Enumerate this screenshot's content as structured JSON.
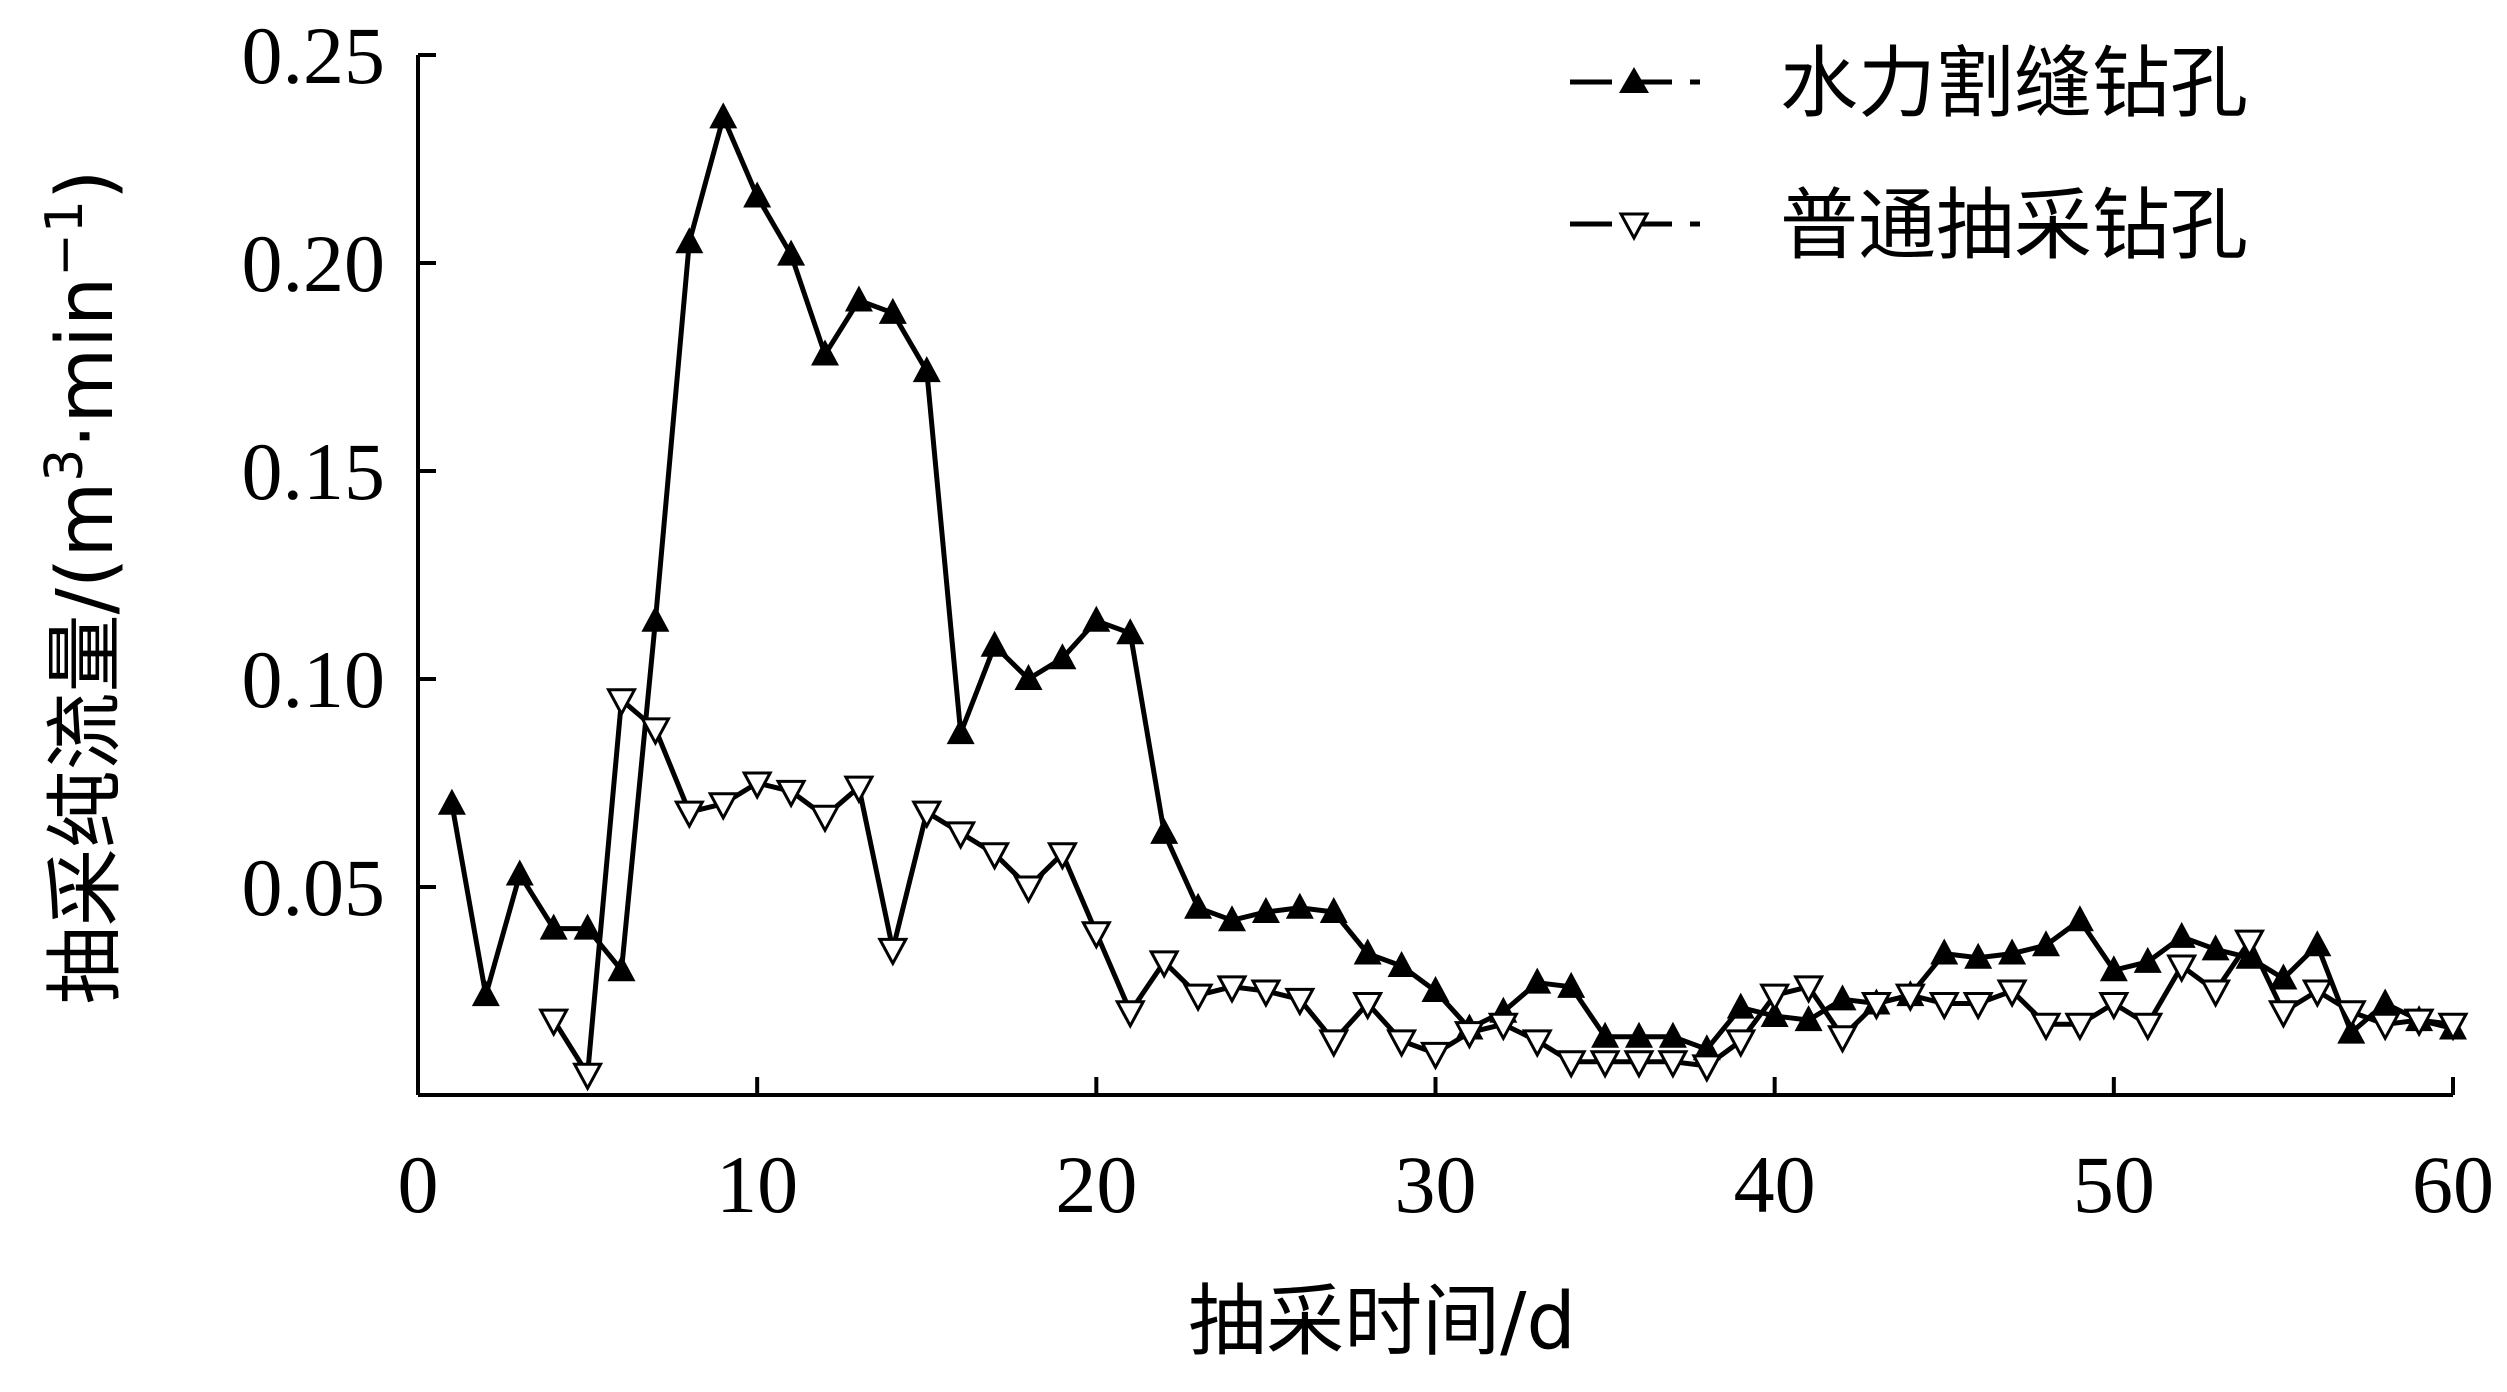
{
  "chart_data": {
    "type": "line",
    "xlabel": "抽采时间/d",
    "ylabel_prefix": "抽采纯流量/(m",
    "ylabel_sup1": "3",
    "ylabel_mid": "·min",
    "ylabel_sup2": "−1",
    "ylabel_suffix": ")",
    "xlim": [
      0,
      60
    ],
    "ylim": [
      0,
      0.25
    ],
    "xticks": [
      "0",
      "10",
      "20",
      "30",
      "40",
      "50",
      "60"
    ],
    "yticks": [
      "0.05",
      "0.10",
      "0.15",
      "0.20",
      "0.25"
    ],
    "grid": false,
    "legend_position": "top-right",
    "series": [
      {
        "name": "水力割缝钻孔",
        "marker": "filled-triangle-up",
        "x": [
          1,
          2,
          3,
          4,
          5,
          6,
          7,
          8,
          9,
          10,
          11,
          12,
          13,
          14,
          15,
          16,
          17,
          18,
          19,
          20,
          21,
          22,
          23,
          24,
          25,
          26,
          27,
          28,
          29,
          30,
          31,
          32,
          33,
          34,
          35,
          36,
          37,
          38,
          39,
          40,
          41,
          42,
          43,
          44,
          45,
          46,
          47,
          48,
          49,
          50,
          51,
          52,
          53,
          54,
          55,
          56,
          57,
          58,
          59,
          60
        ],
        "y": [
          0.07,
          0.024,
          0.053,
          0.04,
          0.04,
          0.03,
          0.114,
          0.205,
          0.235,
          0.216,
          0.202,
          0.178,
          0.191,
          0.188,
          0.174,
          0.087,
          0.108,
          0.1,
          0.105,
          0.114,
          0.111,
          0.063,
          0.045,
          0.042,
          0.044,
          0.045,
          0.044,
          0.034,
          0.031,
          0.025,
          0.016,
          0.02,
          0.027,
          0.026,
          0.014,
          0.014,
          0.014,
          0.011,
          0.021,
          0.019,
          0.018,
          0.023,
          0.022,
          0.024,
          0.034,
          0.033,
          0.034,
          0.036,
          0.042,
          0.03,
          0.032,
          0.038,
          0.035,
          0.033,
          0.028,
          0.036,
          0.015,
          0.022,
          0.018,
          0.016
        ]
      },
      {
        "name": "普通抽采钻孔",
        "marker": "hollow-triangle-down",
        "x": [
          4,
          5,
          6,
          7,
          8,
          9,
          10,
          11,
          12,
          13,
          14,
          15,
          16,
          17,
          18,
          19,
          20,
          21,
          22,
          23,
          24,
          25,
          26,
          27,
          28,
          29,
          30,
          31,
          32,
          33,
          34,
          35,
          36,
          37,
          38,
          39,
          40,
          41,
          42,
          43,
          44,
          45,
          46,
          47,
          48,
          49,
          50,
          51,
          52,
          53,
          54,
          55,
          56,
          57,
          58,
          59,
          60
        ],
        "y": [
          0.018,
          0.005,
          0.095,
          0.088,
          0.068,
          0.07,
          0.075,
          0.073,
          0.067,
          0.074,
          0.035,
          0.068,
          0.063,
          0.058,
          0.05,
          0.058,
          0.039,
          0.02,
          0.032,
          0.024,
          0.026,
          0.025,
          0.023,
          0.013,
          0.022,
          0.013,
          0.01,
          0.015,
          0.017,
          0.013,
          0.008,
          0.008,
          0.008,
          0.008,
          0.007,
          0.013,
          0.024,
          0.026,
          0.014,
          0.022,
          0.024,
          0.022,
          0.022,
          0.025,
          0.017,
          0.017,
          0.022,
          0.017,
          0.031,
          0.025,
          0.037,
          0.02,
          0.025,
          0.02,
          0.017,
          0.018,
          0.017
        ]
      }
    ]
  }
}
